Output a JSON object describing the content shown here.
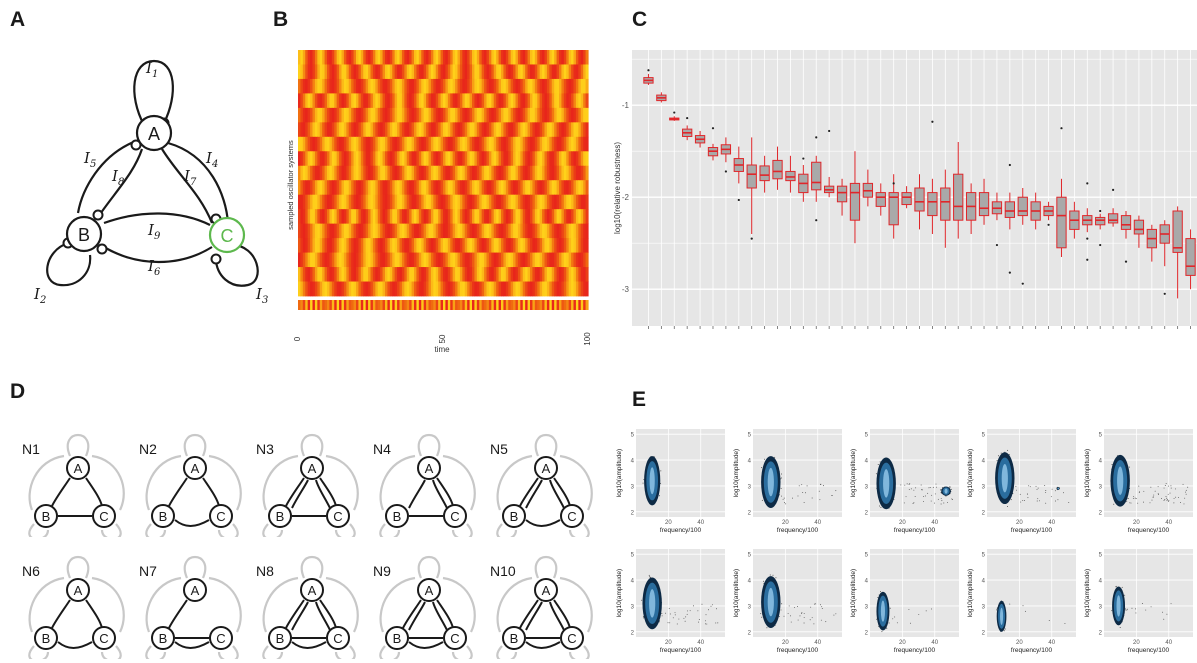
{
  "panel_labels": [
    "A",
    "B",
    "C",
    "D",
    "E"
  ],
  "panel_a": {
    "nodes": [
      "A",
      "B",
      "C"
    ],
    "inputs": [
      "I",
      "I",
      "I",
      "I",
      "I",
      "I",
      "I",
      "I",
      "I"
    ],
    "subscripts": [
      "1",
      "2",
      "3",
      "4",
      "5",
      "6",
      "7",
      "8",
      "9"
    ],
    "colors": {
      "line": "#1a1a1a",
      "highlight": "#5db84d"
    }
  },
  "chart_data": [
    {
      "type": "heatmap",
      "panel": "B",
      "xlabel": "time",
      "ylabel": "sampled oscillator systems",
      "xlim": [
        0,
        100
      ],
      "x_ticks": [
        "0",
        "50",
        "100"
      ],
      "rows": 17,
      "colormap": [
        "#e8251b",
        "#f06a10",
        "#ffd21a"
      ]
    },
    {
      "type": "box",
      "panel": "C",
      "xlabel": "",
      "ylabel": "log10(relative robustness)",
      "ylim": [
        -3.4,
        -0.4
      ],
      "y_ticks": [
        -1,
        -2,
        -3
      ],
      "y_tick_labels": [
        "-1",
        "-2",
        "-3"
      ],
      "boxes": [
        {
          "q1": -0.76,
          "med": -0.73,
          "q3": -0.7,
          "lo": -0.78,
          "hi": -0.66
        },
        {
          "q1": -0.95,
          "med": -0.92,
          "q3": -0.89,
          "lo": -0.97,
          "hi": -0.86
        },
        {
          "q1": -1.16,
          "med": -1.15,
          "q3": -1.14,
          "lo": -1.17,
          "hi": -1.12
        },
        {
          "q1": -1.34,
          "med": -1.3,
          "q3": -1.26,
          "lo": -1.38,
          "hi": -1.22
        },
        {
          "q1": -1.41,
          "med": -1.37,
          "q3": -1.33,
          "lo": -1.46,
          "hi": -1.28
        },
        {
          "q1": -1.55,
          "med": -1.5,
          "q3": -1.46,
          "lo": -1.6,
          "hi": -1.42
        },
        {
          "q1": -1.53,
          "med": -1.48,
          "q3": -1.43,
          "lo": -1.62,
          "hi": -1.35
        },
        {
          "q1": -1.72,
          "med": -1.65,
          "q3": -1.58,
          "lo": -1.85,
          "hi": -1.45
        },
        {
          "q1": -1.9,
          "med": -1.75,
          "q3": -1.65,
          "lo": -2.4,
          "hi": -1.35
        },
        {
          "q1": -1.82,
          "med": -1.76,
          "q3": -1.66,
          "lo": -1.95,
          "hi": -1.55
        },
        {
          "q1": -1.8,
          "med": -1.72,
          "q3": -1.6,
          "lo": -1.92,
          "hi": -1.45
        },
        {
          "q1": -1.82,
          "med": -1.78,
          "q3": -1.72,
          "lo": -1.95,
          "hi": -1.55
        },
        {
          "q1": -1.95,
          "med": -1.85,
          "q3": -1.75,
          "lo": -2.05,
          "hi": -1.65
        },
        {
          "q1": -1.92,
          "med": -1.84,
          "q3": -1.62,
          "lo": -2.05,
          "hi": -1.55
        },
        {
          "q1": -1.95,
          "med": -1.92,
          "q3": -1.88,
          "lo": -2.0,
          "hi": -1.78
        },
        {
          "q1": -2.05,
          "med": -1.95,
          "q3": -1.88,
          "lo": -2.2,
          "hi": -1.8
        },
        {
          "q1": -2.25,
          "med": -1.95,
          "q3": -1.85,
          "lo": -2.5,
          "hi": -1.5
        },
        {
          "q1": -2.0,
          "med": -1.93,
          "q3": -1.85,
          "lo": -2.1,
          "hi": -1.7
        },
        {
          "q1": -2.1,
          "med": -2.0,
          "q3": -1.95,
          "lo": -2.2,
          "hi": -1.85
        },
        {
          "q1": -2.3,
          "med": -2.0,
          "q3": -1.95,
          "lo": -2.45,
          "hi": -1.75
        },
        {
          "q1": -2.08,
          "med": -2.0,
          "q3": -1.95,
          "lo": -2.12,
          "hi": -1.88
        },
        {
          "q1": -2.15,
          "med": -2.05,
          "q3": -1.9,
          "lo": -2.35,
          "hi": -1.75
        },
        {
          "q1": -2.2,
          "med": -2.05,
          "q3": -1.95,
          "lo": -2.4,
          "hi": -1.8
        },
        {
          "q1": -2.25,
          "med": -2.05,
          "q3": -1.9,
          "lo": -2.55,
          "hi": -1.7
        },
        {
          "q1": -2.25,
          "med": -2.1,
          "q3": -1.75,
          "lo": -2.45,
          "hi": -1.4
        },
        {
          "q1": -2.25,
          "med": -2.1,
          "q3": -1.95,
          "lo": -2.4,
          "hi": -1.85
        },
        {
          "q1": -2.2,
          "med": -2.12,
          "q3": -1.95,
          "lo": -2.3,
          "hi": -1.8
        },
        {
          "q1": -2.18,
          "med": -2.12,
          "q3": -2.05,
          "lo": -2.25,
          "hi": -1.95
        },
        {
          "q1": -2.22,
          "med": -2.15,
          "q3": -2.05,
          "lo": -2.35,
          "hi": -1.95
        },
        {
          "q1": -2.2,
          "med": -2.15,
          "q3": -2.0,
          "lo": -2.3,
          "hi": -1.9
        },
        {
          "q1": -2.25,
          "med": -2.15,
          "q3": -2.05,
          "lo": -2.35,
          "hi": -1.95
        },
        {
          "q1": -2.2,
          "med": -2.15,
          "q3": -2.1,
          "lo": -2.25,
          "hi": -2.05
        },
        {
          "q1": -2.55,
          "med": -2.2,
          "q3": -2.0,
          "lo": -2.65,
          "hi": -1.8
        },
        {
          "q1": -2.35,
          "med": -2.25,
          "q3": -2.15,
          "lo": -2.45,
          "hi": -2.05
        },
        {
          "q1": -2.3,
          "med": -2.25,
          "q3": -2.2,
          "lo": -2.38,
          "hi": -2.12
        },
        {
          "q1": -2.3,
          "med": -2.25,
          "q3": -2.22,
          "lo": -2.35,
          "hi": -2.18
        },
        {
          "q1": -2.28,
          "med": -2.25,
          "q3": -2.18,
          "lo": -2.32,
          "hi": -2.12
        },
        {
          "q1": -2.35,
          "med": -2.3,
          "q3": -2.2,
          "lo": -2.45,
          "hi": -2.15
        },
        {
          "q1": -2.4,
          "med": -2.35,
          "q3": -2.25,
          "lo": -2.55,
          "hi": -2.2
        },
        {
          "q1": -2.55,
          "med": -2.45,
          "q3": -2.35,
          "lo": -2.7,
          "hi": -2.3
        },
        {
          "q1": -2.5,
          "med": -2.4,
          "q3": -2.3,
          "lo": -2.75,
          "hi": -2.25
        },
        {
          "q1": -2.6,
          "med": -2.55,
          "q3": -2.15,
          "lo": -3.1,
          "hi": -2.1
        },
        {
          "q1": -2.85,
          "med": -2.75,
          "q3": -2.45,
          "lo": -3.0,
          "hi": -2.35
        }
      ],
      "outliers": [
        [
          0,
          -0.62
        ],
        [
          2,
          -1.08
        ],
        [
          3,
          -1.14
        ],
        [
          5,
          -1.25
        ],
        [
          6,
          -1.72
        ],
        [
          7,
          -2.03
        ],
        [
          8,
          -2.45
        ],
        [
          12,
          -1.58
        ],
        [
          13,
          -2.25
        ],
        [
          13,
          -1.35
        ],
        [
          14,
          -1.28
        ],
        [
          19,
          -1.85
        ],
        [
          22,
          -1.18
        ],
        [
          27,
          -2.52
        ],
        [
          28,
          -1.65
        ],
        [
          28,
          -2.82
        ],
        [
          29,
          -2.94
        ],
        [
          31,
          -2.3
        ],
        [
          32,
          -1.25
        ],
        [
          34,
          -1.85
        ],
        [
          34,
          -2.45
        ],
        [
          34,
          -2.68
        ],
        [
          35,
          -2.15
        ],
        [
          35,
          -2.52
        ],
        [
          36,
          -1.92
        ],
        [
          37,
          -2.7
        ],
        [
          40,
          -3.05
        ]
      ],
      "colors": {
        "panel_bg": "#e6e6e6",
        "grid": "#ffffff",
        "box_fill": "#a9a9a9",
        "box_line": "#e0262a",
        "outlier": "#222222"
      }
    },
    {
      "type": "scatter",
      "panel": "E",
      "xlabel": "frequency/100",
      "ylabel": "log10(amplitude)",
      "xlim": [
        0,
        55
      ],
      "ylim": [
        1.8,
        5.2
      ],
      "x_tick_labels": [
        "20",
        "40"
      ],
      "y_tick_labels": [
        "2",
        "3",
        "4",
        "5"
      ],
      "subplots": [
        {
          "blobs": [
            {
              "cx": 10,
              "cy": 3.2,
              "rx": 5,
              "ry": 0.95
            }
          ],
          "sparse": 0
        },
        {
          "blobs": [
            {
              "cx": 11,
              "cy": 3.15,
              "rx": 6,
              "ry": 1.0
            }
          ],
          "sparse": 25
        },
        {
          "blobs": [
            {
              "cx": 10,
              "cy": 3.1,
              "rx": 6,
              "ry": 1.0
            },
            {
              "cx": 47,
              "cy": 2.8,
              "rx": 3,
              "ry": 0.18
            }
          ],
          "sparse": 45
        },
        {
          "blobs": [
            {
              "cx": 11,
              "cy": 3.3,
              "rx": 6,
              "ry": 1.0
            },
            {
              "cx": 44,
              "cy": 2.9,
              "rx": 0.8,
              "ry": 0.05
            }
          ],
          "sparse": 30
        },
        {
          "blobs": [
            {
              "cx": 10,
              "cy": 3.2,
              "rx": 6,
              "ry": 1.0
            }
          ],
          "sparse": 55
        },
        {
          "blobs": [
            {
              "cx": 10,
              "cy": 3.1,
              "rx": 6,
              "ry": 1.0
            }
          ],
          "sparse": 35
        },
        {
          "blobs": [
            {
              "cx": 11,
              "cy": 3.15,
              "rx": 6,
              "ry": 1.0
            }
          ],
          "sparse": 30
        },
        {
          "blobs": [
            {
              "cx": 8,
              "cy": 2.8,
              "rx": 4,
              "ry": 0.75
            }
          ],
          "sparse": 8
        },
        {
          "blobs": [
            {
              "cx": 9,
              "cy": 2.6,
              "rx": 3,
              "ry": 0.6
            }
          ],
          "sparse": 5
        },
        {
          "blobs": [
            {
              "cx": 9,
              "cy": 3.0,
              "rx": 4,
              "ry": 0.75
            }
          ],
          "sparse": 12
        }
      ],
      "colors": {
        "panel_bg": "#e6e6e6",
        "grid": "#ffffff",
        "blob_dark": "#0d2a45",
        "blob_mid": "#2a6d9e",
        "blob_light": "#8fc4e6",
        "dot": "#444444"
      }
    }
  ],
  "panel_d": {
    "networks": [
      {
        "label": "N1"
      },
      {
        "label": "N2"
      },
      {
        "label": "N3"
      },
      {
        "label": "N4"
      },
      {
        "label": "N5"
      },
      {
        "label": "N6"
      },
      {
        "label": "N7"
      },
      {
        "label": "N8"
      },
      {
        "label": "N9"
      },
      {
        "label": "N10"
      }
    ],
    "nodes": [
      "A",
      "B",
      "C"
    ],
    "colors": {
      "line": "#1a1a1a",
      "faded": "#c8c8c8"
    }
  }
}
